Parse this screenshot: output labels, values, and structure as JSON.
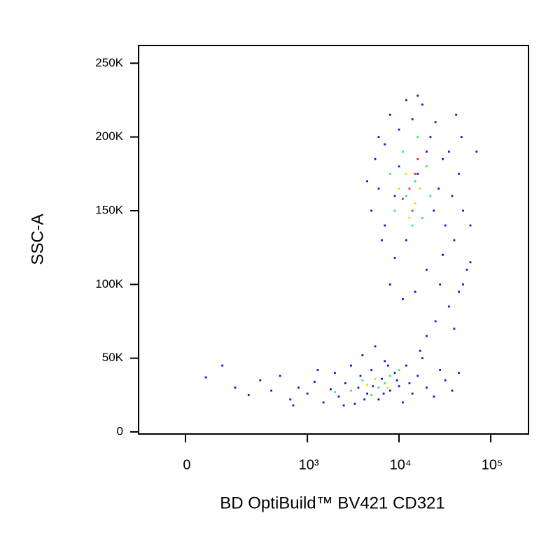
{
  "chart_data": {
    "type": "scatter",
    "xlabel": "BD OptiBuild™ BV421 CD321",
    "ylabel": "SSC-A",
    "xscale": "biexponential",
    "xlim": [
      -138,
      258000
    ],
    "ylim": [
      -1400,
      262000
    ],
    "xticks": [
      0,
      {
        "value": 1000,
        "label": "10³"
      },
      {
        "value": 10000,
        "label": "10⁴"
      },
      {
        "value": 100000,
        "label": "10⁵"
      }
    ],
    "yticks": [
      0,
      {
        "value": 50000,
        "label": "50K"
      },
      {
        "value": 100000,
        "label": "100K"
      },
      {
        "value": 150000,
        "label": "150K"
      },
      {
        "value": 200000,
        "label": "200K"
      },
      {
        "value": 250000,
        "label": "250K"
      }
    ],
    "series": [
      {
        "color": "#1010ee",
        "x": [
          6000,
          8000,
          12000,
          18000,
          25000,
          35000,
          45000,
          50000,
          40000,
          30000,
          20000,
          9000,
          6500,
          5000,
          4500,
          5500,
          7000,
          10000,
          14000,
          22000,
          30000,
          38000,
          60000,
          70000,
          55000,
          45000,
          35000,
          25000,
          20000,
          17000,
          40000,
          50000,
          60000,
          28000,
          15000,
          11000,
          8000,
          7000,
          9000,
          16000,
          24000,
          32000,
          12000,
          20000,
          27000,
          10000,
          6000,
          48000,
          42000,
          16000,
          50,
          100,
          150,
          220,
          300,
          400,
          500,
          650,
          800,
          1000,
          1200,
          1500,
          1800,
          2000,
          2200,
          2600,
          3000,
          3300,
          3600,
          4000,
          4500,
          5000,
          5500,
          6000,
          6500,
          7000,
          8000,
          9000,
          10000,
          11000,
          12000,
          14000,
          16000,
          18000,
          20000,
          24000,
          28000,
          32000,
          38000,
          45000,
          700,
          1300,
          2500,
          3800,
          4200,
          5200,
          6800,
          7600,
          9500,
          13000
        ],
        "values": [
          200000,
          215000,
          225000,
          222000,
          210000,
          190000,
          175000,
          150000,
          130000,
          120000,
          110000,
          118000,
          130000,
          150000,
          170000,
          185000,
          195000,
          205000,
          212000,
          200000,
          185000,
          160000,
          140000,
          190000,
          110000,
          95000,
          85000,
          75000,
          65000,
          55000,
          70000,
          100000,
          115000,
          100000,
          95000,
          90000,
          100000,
          140000,
          160000,
          175000,
          150000,
          140000,
          130000,
          190000,
          165000,
          180000,
          165000,
          200000,
          215000,
          228000,
          37000,
          45000,
          30000,
          25000,
          35000,
          28000,
          38000,
          22000,
          30000,
          26000,
          34000,
          20000,
          29000,
          40000,
          24000,
          33000,
          45000,
          19000,
          30000,
          52000,
          26000,
          42000,
          58000,
          22000,
          36000,
          48000,
          28000,
          40000,
          31000,
          20000,
          45000,
          26000,
          38000,
          50000,
          30000,
          24000,
          42000,
          35000,
          28000,
          40000,
          18000,
          42000,
          18000,
          38000,
          22000,
          31000,
          26000,
          45000,
          35000,
          33000
        ]
      },
      {
        "color": "#30e870",
        "x": [
          12000,
          15000,
          9000,
          18000,
          11000,
          20000,
          14000,
          8000,
          4000,
          6000,
          8000,
          3000,
          10000,
          5000,
          7000,
          2000,
          16000,
          22000
        ],
        "values": [
          160000,
          170000,
          150000,
          145000,
          190000,
          180000,
          140000,
          175000,
          35000,
          30000,
          38000,
          28000,
          42000,
          25000,
          33000,
          27000,
          200000,
          160000
        ]
      },
      {
        "color": "#e0e000",
        "x": [
          12000,
          15000,
          10000,
          17000,
          13000,
          5500,
          7500,
          4500
        ],
        "values": [
          175000,
          155000,
          165000,
          165000,
          145000,
          36000,
          30000,
          32000
        ]
      },
      {
        "color": "#e03010",
        "x": [
          13000,
          15000,
          11000,
          14000,
          16000
        ],
        "values": [
          165000,
          175000,
          158000,
          150000,
          185000
        ]
      }
    ]
  }
}
